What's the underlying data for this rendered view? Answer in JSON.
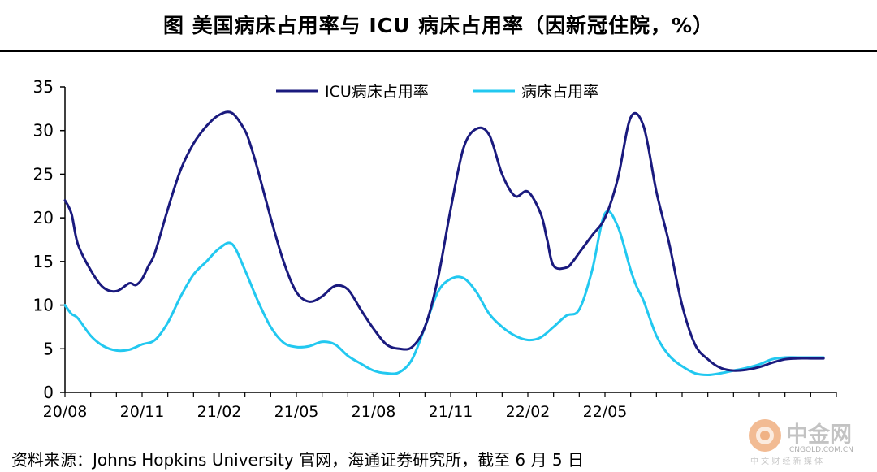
{
  "title": "图  美国病床占用率与 ICU 病床占用率（因新冠住院，%）",
  "source": "资料来源：Johns Hopkins University 官网，海通证券研究所，截至 6 月 5 日",
  "watermark": {
    "cn": "中金网",
    "domain": "CNGOLD.COM.CN",
    "tagline": "中 文 财 经 新 媒 体"
  },
  "colors": {
    "icu": "#1a1a7e",
    "bed": "#22c8f0",
    "axis": "#000000"
  },
  "chart_data": {
    "type": "line",
    "ylim": [
      0,
      35
    ],
    "yticks": [
      "0",
      "5",
      "10",
      "15",
      "20",
      "25",
      "30",
      "35"
    ],
    "xticks": [
      "20/08",
      "20/11",
      "21/02",
      "21/05",
      "21/08",
      "21/11",
      "22/02",
      "22/05"
    ],
    "legend_position": "top-center",
    "grid": false,
    "series": [
      {
        "name": "ICU病床占用率",
        "color": "#1a1a7e",
        "x": [
          0,
          0.25,
          0.5,
          1,
          1.5,
          2,
          2.5,
          2.75,
          3,
          3.25,
          3.5,
          4,
          4.5,
          5,
          5.5,
          6,
          6.5,
          7,
          7.25,
          7.5,
          8,
          8.5,
          9,
          9.5,
          10,
          10.5,
          11,
          11.5,
          12,
          12.5,
          13,
          13.5,
          14,
          14.5,
          15,
          15.5,
          16,
          16.5,
          17,
          17.5,
          18,
          18.5,
          18.75,
          19,
          19.5,
          19.75,
          20,
          20.5,
          21,
          21.5,
          22,
          22.5,
          23,
          23.5,
          24,
          24.5,
          25,
          25.5,
          26,
          26.5,
          27,
          27.5,
          28,
          28.5,
          29,
          29.25,
          29.5
        ],
        "y": [
          22.0,
          20.5,
          17.0,
          14.0,
          12.0,
          11.6,
          12.5,
          12.3,
          13.0,
          14.5,
          16.0,
          21.0,
          25.5,
          28.5,
          30.5,
          31.8,
          32.0,
          30.0,
          28.0,
          25.5,
          20.0,
          15.0,
          11.5,
          10.4,
          11.0,
          12.2,
          11.8,
          9.5,
          7.3,
          5.5,
          5.0,
          5.2,
          7.5,
          13.0,
          21.0,
          28.0,
          30.2,
          29.5,
          25.0,
          22.5,
          23.0,
          20.5,
          17.5,
          14.5,
          14.3,
          15.0,
          16.0,
          18.0,
          20.0,
          24.5,
          31.5,
          30.5,
          23.0,
          17.0,
          10.0,
          5.5,
          3.8,
          2.8,
          2.5,
          2.6,
          2.9,
          3.4,
          3.8,
          3.9,
          3.9,
          3.9,
          3.9
        ]
      },
      {
        "name": "病床占用率",
        "color": "#22c8f0",
        "x": [
          0,
          0.25,
          0.5,
          1,
          1.5,
          2,
          2.5,
          3,
          3.5,
          4,
          4.5,
          5,
          5.5,
          6,
          6.5,
          7,
          7.5,
          8,
          8.5,
          9,
          9.5,
          10,
          10.5,
          11,
          11.5,
          12,
          12.5,
          13,
          13.5,
          14,
          14.5,
          15,
          15.5,
          16,
          16.5,
          17,
          17.5,
          18,
          18.5,
          19,
          19.5,
          20,
          20.5,
          21,
          21.5,
          22,
          22.25,
          22.5,
          23,
          23.5,
          24,
          24.5,
          25,
          25.5,
          26,
          26.5,
          27,
          27.5,
          28,
          28.5,
          29,
          29.5
        ],
        "y": [
          10.0,
          9.0,
          8.5,
          6.5,
          5.3,
          4.8,
          4.9,
          5.5,
          6.0,
          8.0,
          11.0,
          13.5,
          15.0,
          16.5,
          17.0,
          14.0,
          10.5,
          7.5,
          5.7,
          5.2,
          5.3,
          5.8,
          5.5,
          4.2,
          3.3,
          2.5,
          2.2,
          2.3,
          3.8,
          7.5,
          11.5,
          13.0,
          13.1,
          11.5,
          9.0,
          7.5,
          6.5,
          6.0,
          6.3,
          7.5,
          8.8,
          9.5,
          14.0,
          20.5,
          19.0,
          14.0,
          12.0,
          10.5,
          6.5,
          4.2,
          3.0,
          2.2,
          2.0,
          2.2,
          2.5,
          2.8,
          3.2,
          3.8,
          4.0,
          4.0,
          4.0,
          4.0
        ]
      }
    ]
  }
}
